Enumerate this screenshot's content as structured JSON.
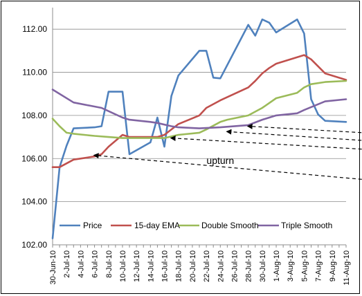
{
  "chart_data": {
    "type": "line",
    "title": "",
    "xlabel": "",
    "ylabel": "",
    "ylim": [
      102,
      113
    ],
    "yticks": [
      "102.00",
      "104.00",
      "106.00",
      "108.00",
      "110.00",
      "112.00"
    ],
    "grid": "horizontal",
    "legend_position": "bottom-inside",
    "x_dates": [
      "30-Jun-10",
      "1-Jul-10",
      "2-Jul-10",
      "3-Jul-10",
      "4-Jul-10",
      "5-Jul-10",
      "6-Jul-10",
      "7-Jul-10",
      "8-Jul-10",
      "9-Jul-10",
      "10-Jul-10",
      "11-Jul-10",
      "12-Jul-10",
      "13-Jul-10",
      "14-Jul-10",
      "15-Jul-10",
      "16-Jul-10",
      "17-Jul-10",
      "18-Jul-10",
      "19-Jul-10",
      "20-Jul-10",
      "21-Jul-10",
      "22-Jul-10",
      "23-Jul-10",
      "24-Jul-10",
      "25-Jul-10",
      "26-Jul-10",
      "27-Jul-10",
      "28-Jul-10",
      "29-Jul-10",
      "30-Jul-10",
      "31-Jul-10",
      "1-Aug-10",
      "2-Aug-10",
      "3-Aug-10",
      "4-Aug-10",
      "5-Aug-10",
      "6-Aug-10",
      "7-Aug-10",
      "8-Aug-10",
      "9-Aug-10",
      "10-Aug-10",
      "11-Aug-10"
    ],
    "x_tick_labels": [
      "30-Jun-10",
      "2-Jul-10",
      "4-Jul-10",
      "6-Jul-10",
      "8-Jul-10",
      "10-Jul-10",
      "12-Jul-10",
      "14-Jul-10",
      "16-Jul-10",
      "18-Jul-10",
      "20-Jul-10",
      "22-Jul-10",
      "24-Jul-10",
      "26-Jul-10",
      "28-Jul-10",
      "30-Jul-10",
      "1-Aug-10",
      "3-Aug-10",
      "5-Aug-10",
      "7-Aug-10",
      "9-Aug-10",
      "11-Aug-10"
    ],
    "series": [
      {
        "name": "Price",
        "color": "#4F81BD",
        "points": [
          [
            "30-Jun-10",
            102.3
          ],
          [
            "1-Jul-10",
            105.6
          ],
          [
            "2-Jul-10",
            106.6
          ],
          [
            "3-Jul-10",
            107.4
          ],
          [
            "6-Jul-10",
            107.45
          ],
          [
            "7-Jul-10",
            107.5
          ],
          [
            "8-Jul-10",
            109.1
          ],
          [
            "9-Jul-10",
            109.1
          ],
          [
            "10-Jul-10",
            109.1
          ],
          [
            "11-Jul-10",
            106.2
          ],
          [
            "14-Jul-10",
            106.75
          ],
          [
            "15-Jul-10",
            107.9
          ],
          [
            "16-Jul-10",
            106.55
          ],
          [
            "17-Jul-10",
            108.9
          ],
          [
            "18-Jul-10",
            109.85
          ],
          [
            "21-Jul-10",
            111.0
          ],
          [
            "22-Jul-10",
            111.0
          ],
          [
            "23-Jul-10",
            109.75
          ],
          [
            "24-Jul-10",
            109.72
          ],
          [
            "28-Jul-10",
            112.2
          ],
          [
            "29-Jul-10",
            111.7
          ],
          [
            "30-Jul-10",
            112.45
          ],
          [
            "31-Jul-10",
            112.3
          ],
          [
            "1-Aug-10",
            111.85
          ],
          [
            "4-Aug-10",
            112.45
          ],
          [
            "5-Aug-10",
            111.8
          ],
          [
            "6-Aug-10",
            108.75
          ],
          [
            "7-Aug-10",
            108.05
          ],
          [
            "8-Aug-10",
            107.75
          ],
          [
            "11-Aug-10",
            107.7
          ]
        ]
      },
      {
        "name": "15-day EMA",
        "color": "#C0504D",
        "points": [
          [
            "30-Jun-10",
            105.6
          ],
          [
            "1-Jul-10",
            105.6
          ],
          [
            "3-Jul-10",
            105.95
          ],
          [
            "6-Jul-10",
            106.1
          ],
          [
            "7-Jul-10",
            106.2
          ],
          [
            "8-Jul-10",
            106.55
          ],
          [
            "10-Jul-10",
            107.1
          ],
          [
            "11-Jul-10",
            107.0
          ],
          [
            "15-Jul-10",
            107.0
          ],
          [
            "16-Jul-10",
            107.1
          ],
          [
            "18-Jul-10",
            107.6
          ],
          [
            "21-Jul-10",
            108.0
          ],
          [
            "22-Jul-10",
            108.35
          ],
          [
            "24-Jul-10",
            108.7
          ],
          [
            "28-Jul-10",
            109.3
          ],
          [
            "29-Jul-10",
            109.6
          ],
          [
            "30-Jul-10",
            109.95
          ],
          [
            "31-Jul-10",
            110.2
          ],
          [
            "1-Aug-10",
            110.4
          ],
          [
            "4-Aug-10",
            110.7
          ],
          [
            "5-Aug-10",
            110.8
          ],
          [
            "6-Aug-10",
            110.6
          ],
          [
            "8-Aug-10",
            109.95
          ],
          [
            "11-Aug-10",
            109.65
          ]
        ]
      },
      {
        "name": "Double Smooth",
        "color": "#9BBB59",
        "points": [
          [
            "30-Jun-10",
            107.85
          ],
          [
            "1-Jul-10",
            107.5
          ],
          [
            "2-Jul-10",
            107.2
          ],
          [
            "3-Jul-10",
            107.15
          ],
          [
            "6-Jul-10",
            107.05
          ],
          [
            "8-Jul-10",
            107.0
          ],
          [
            "10-Jul-10",
            106.95
          ],
          [
            "16-Jul-10",
            106.95
          ],
          [
            "18-Jul-10",
            107.1
          ],
          [
            "21-Jul-10",
            107.2
          ],
          [
            "22-Jul-10",
            107.35
          ],
          [
            "24-Jul-10",
            107.7
          ],
          [
            "25-Jul-10",
            107.8
          ],
          [
            "28-Jul-10",
            108.0
          ],
          [
            "30-Jul-10",
            108.35
          ],
          [
            "1-Aug-10",
            108.8
          ],
          [
            "4-Aug-10",
            109.05
          ],
          [
            "5-Aug-10",
            109.3
          ],
          [
            "6-Aug-10",
            109.45
          ],
          [
            "8-Aug-10",
            109.55
          ],
          [
            "11-Aug-10",
            109.6
          ]
        ]
      },
      {
        "name": "Triple Smooth",
        "color": "#8064A2",
        "points": [
          [
            "30-Jun-10",
            109.2
          ],
          [
            "3-Jul-10",
            108.6
          ],
          [
            "7-Jul-10",
            108.35
          ],
          [
            "8-Jul-10",
            108.2
          ],
          [
            "10-Jul-10",
            107.9
          ],
          [
            "11-Jul-10",
            107.8
          ],
          [
            "14-Jul-10",
            107.7
          ],
          [
            "15-Jul-10",
            107.65
          ],
          [
            "17-Jul-10",
            107.5
          ],
          [
            "18-Jul-10",
            107.45
          ],
          [
            "21-Jul-10",
            107.4
          ],
          [
            "24-Jul-10",
            107.45
          ],
          [
            "28-Jul-10",
            107.55
          ],
          [
            "30-Jul-10",
            107.8
          ],
          [
            "1-Aug-10",
            108.0
          ],
          [
            "4-Aug-10",
            108.1
          ],
          [
            "5-Aug-10",
            108.25
          ],
          [
            "8-Aug-10",
            108.65
          ],
          [
            "11-Aug-10",
            108.75
          ]
        ]
      }
    ],
    "annotations": [
      {
        "text": "upturn",
        "arrow_tails": [
          [
            107.3,
            103.2
          ],
          [
            110.1,
            105.2
          ],
          [
            112.7,
            105.4
          ],
          [
            115.4,
            105.9
          ]
        ],
        "arrow_heads": [
          [
            "6-Jul-10",
            106.15
          ],
          [
            "17-Jul-10",
            106.95
          ],
          [
            "25-Jul-10",
            107.25
          ],
          [
            "28-Jul-10",
            107.5
          ]
        ],
        "label_position": [
          24.0,
          105.75
        ]
      }
    ]
  }
}
